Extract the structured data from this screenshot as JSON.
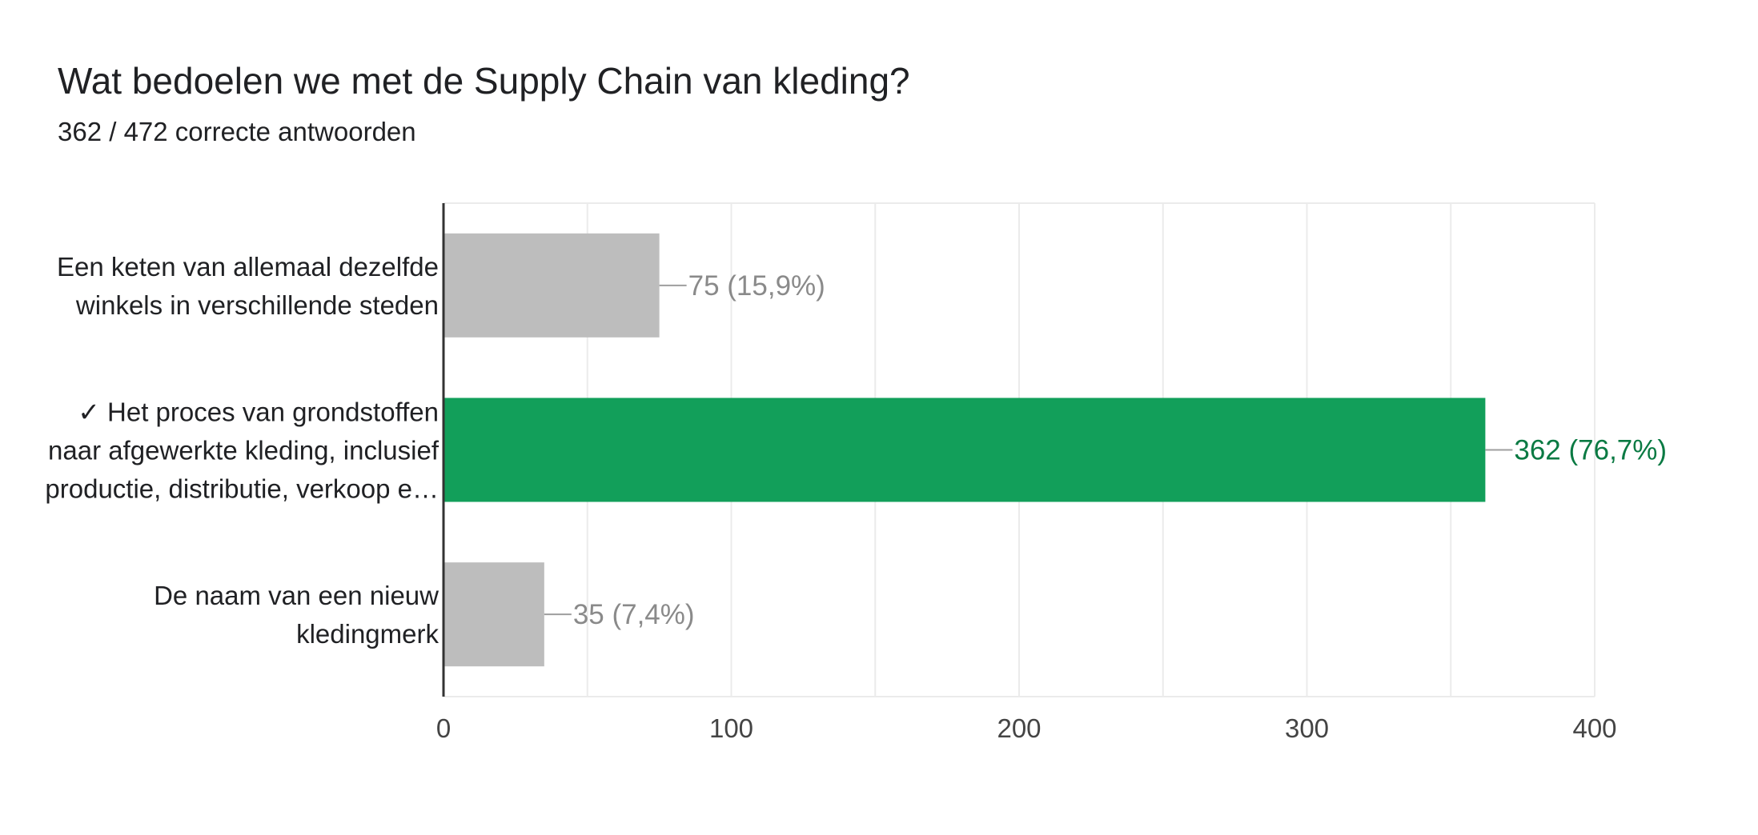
{
  "header": {
    "title": "Wat bedoelen we met de Supply Chain van kleding?",
    "subtitle": "362 / 472 correcte antwoorden"
  },
  "colors": {
    "correct": "#129f5a",
    "correct_label": "#0a7a43",
    "incorrect": "#bdbdbd",
    "incorrect_label": "#8a8a8a",
    "grid": "#ebebeb",
    "axis": "#333333"
  },
  "chart_data": {
    "type": "bar",
    "orientation": "horizontal",
    "title": "Wat bedoelen we met de Supply Chain van kleding?",
    "subtitle": "362 / 472 correcte antwoorden",
    "categories": [
      {
        "lines": [
          "Een keten van allemaal dezelfde",
          "winkels in verschillende steden"
        ],
        "correct": false
      },
      {
        "lines": [
          "✓ Het proces van grondstoffen",
          "naar afgewerkte kleding, inclusief",
          "productie, distributie, verkoop e…"
        ],
        "correct": true
      },
      {
        "lines": [
          "De naam van een nieuw",
          "kledingmerk"
        ],
        "correct": false
      }
    ],
    "values": [
      75,
      362,
      35
    ],
    "data_labels": [
      "75 (15,9%)",
      "362 (76,7%)",
      "35 (7,4%)"
    ],
    "xlim": [
      0,
      400
    ],
    "xticks": [
      0,
      100,
      200,
      300,
      400
    ],
    "minor_grid_step": 50,
    "grid": true,
    "legend": "none"
  }
}
